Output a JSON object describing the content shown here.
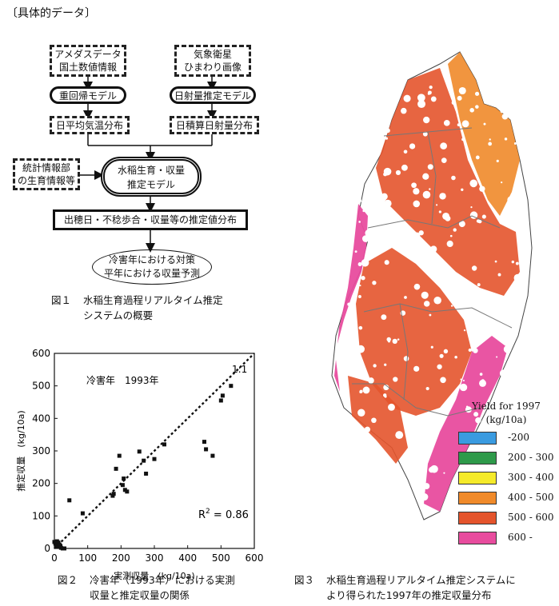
{
  "section_title": "〔具体的データ〕",
  "flow": {
    "amedas": [
      "アメダスデータ",
      "国土数値情報"
    ],
    "satellite": [
      "気象衛星",
      "ひまわり画像"
    ],
    "regression_model": "重回帰モデル",
    "solar_model": "日射量推定モデル",
    "temp_distribution": "日平均気温分布",
    "solar_distribution": "日積算日射量分布",
    "stats": [
      "統計情報部",
      "の生育情報等"
    ],
    "rice_model": [
      "水稲生育・収量",
      "推定モデル"
    ],
    "estimate_output": "出穂日・不稔歩合・収量等の推定値分布",
    "final": [
      "冷害年における対策",
      "平年における収量予測"
    ]
  },
  "fig1": {
    "num": "図１",
    "text": [
      "水稲生育過程リアルタイム推定",
      "システムの概要"
    ]
  },
  "fig2": {
    "num": "図２",
    "text": [
      "冷害年（1993年）における実測",
      "収量と推定収量の関係"
    ]
  },
  "fig3": {
    "num": "図３",
    "text": [
      "水稲生育過程リアルタイム推定システムに",
      "より得られた1997年の推定収量分布"
    ]
  },
  "chart_data": {
    "type": "scatter",
    "annotation": "冷害年　1993年",
    "line_label": "1:1",
    "r2_label": "R",
    "r2_sup": "2",
    "r2_value": " = 0.86",
    "xlabel": "実測収量　(kg/10a)",
    "ylabel": "推定収量　(kg/10a)",
    "xlim": [
      0,
      600
    ],
    "ylim": [
      0,
      600
    ],
    "xticks": [
      0,
      100,
      200,
      300,
      400,
      500,
      600
    ],
    "yticks": [
      0,
      100,
      200,
      300,
      400,
      500,
      600
    ],
    "points": [
      [
        0,
        20
      ],
      [
        3,
        15
      ],
      [
        5,
        10
      ],
      [
        8,
        22
      ],
      [
        10,
        5
      ],
      [
        12,
        18
      ],
      [
        15,
        12
      ],
      [
        18,
        8
      ],
      [
        20,
        2
      ],
      [
        25,
        0
      ],
      [
        30,
        0
      ],
      [
        45,
        148
      ],
      [
        85,
        108
      ],
      [
        175,
        162
      ],
      [
        178,
        168
      ],
      [
        185,
        245
      ],
      [
        195,
        285
      ],
      [
        205,
        195
      ],
      [
        208,
        215
      ],
      [
        212,
        180
      ],
      [
        218,
        175
      ],
      [
        255,
        298
      ],
      [
        268,
        270
      ],
      [
        275,
        230
      ],
      [
        300,
        275
      ],
      [
        330,
        320
      ],
      [
        450,
        328
      ],
      [
        455,
        305
      ],
      [
        475,
        285
      ],
      [
        500,
        455
      ],
      [
        505,
        470
      ],
      [
        530,
        500
      ]
    ]
  },
  "legend": {
    "title": [
      "Yield  for  1997",
      "(kg/10a)"
    ],
    "items": [
      {
        "label": "-200",
        "color": "#3a9be0"
      },
      {
        "label": "200  -  300",
        "color": "#2e9a4a"
      },
      {
        "label": "300  -  400",
        "color": "#f5ea2a"
      },
      {
        "label": "400  -  500",
        "color": "#f08a2a"
      },
      {
        "label": "500  -  600",
        "color": "#e4542c"
      },
      {
        "label": "600  -",
        "color": "#e84c9e"
      }
    ]
  }
}
